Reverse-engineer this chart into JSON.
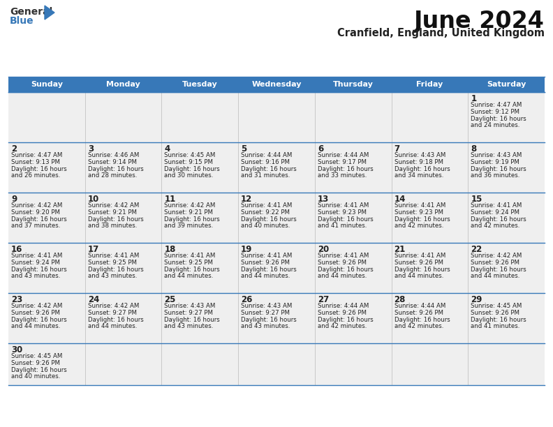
{
  "title": "June 2024",
  "subtitle": "Cranfield, England, United Kingdom",
  "days_of_week": [
    "Sunday",
    "Monday",
    "Tuesday",
    "Wednesday",
    "Thursday",
    "Friday",
    "Saturday"
  ],
  "header_color": "#3778b8",
  "header_text_color": "#ffffff",
  "cell_bg": "#efefef",
  "border_color": "#3778b8",
  "day_num_color": "#222222",
  "text_color": "#222222",
  "calendar": [
    [
      null,
      null,
      null,
      null,
      null,
      null,
      1
    ],
    [
      2,
      3,
      4,
      5,
      6,
      7,
      8
    ],
    [
      9,
      10,
      11,
      12,
      13,
      14,
      15
    ],
    [
      16,
      17,
      18,
      19,
      20,
      21,
      22
    ],
    [
      23,
      24,
      25,
      26,
      27,
      28,
      29
    ],
    [
      30,
      null,
      null,
      null,
      null,
      null,
      null
    ]
  ],
  "sunrise": {
    "1": "4:47 AM",
    "2": "4:47 AM",
    "3": "4:46 AM",
    "4": "4:45 AM",
    "5": "4:44 AM",
    "6": "4:44 AM",
    "7": "4:43 AM",
    "8": "4:43 AM",
    "9": "4:42 AM",
    "10": "4:42 AM",
    "11": "4:42 AM",
    "12": "4:41 AM",
    "13": "4:41 AM",
    "14": "4:41 AM",
    "15": "4:41 AM",
    "16": "4:41 AM",
    "17": "4:41 AM",
    "18": "4:41 AM",
    "19": "4:41 AM",
    "20": "4:41 AM",
    "21": "4:41 AM",
    "22": "4:42 AM",
    "23": "4:42 AM",
    "24": "4:42 AM",
    "25": "4:43 AM",
    "26": "4:43 AM",
    "27": "4:44 AM",
    "28": "4:44 AM",
    "29": "4:45 AM",
    "30": "4:45 AM"
  },
  "sunset": {
    "1": "9:12 PM",
    "2": "9:13 PM",
    "3": "9:14 PM",
    "4": "9:15 PM",
    "5": "9:16 PM",
    "6": "9:17 PM",
    "7": "9:18 PM",
    "8": "9:19 PM",
    "9": "9:20 PM",
    "10": "9:21 PM",
    "11": "9:21 PM",
    "12": "9:22 PM",
    "13": "9:23 PM",
    "14": "9:23 PM",
    "15": "9:24 PM",
    "16": "9:24 PM",
    "17": "9:25 PM",
    "18": "9:25 PM",
    "19": "9:26 PM",
    "20": "9:26 PM",
    "21": "9:26 PM",
    "22": "9:26 PM",
    "23": "9:26 PM",
    "24": "9:27 PM",
    "25": "9:27 PM",
    "26": "9:27 PM",
    "27": "9:26 PM",
    "28": "9:26 PM",
    "29": "9:26 PM",
    "30": "9:26 PM"
  },
  "daylight": {
    "1": [
      "16 hours",
      "and 24 minutes."
    ],
    "2": [
      "16 hours",
      "and 26 minutes."
    ],
    "3": [
      "16 hours",
      "and 28 minutes."
    ],
    "4": [
      "16 hours",
      "and 30 minutes."
    ],
    "5": [
      "16 hours",
      "and 31 minutes."
    ],
    "6": [
      "16 hours",
      "and 33 minutes."
    ],
    "7": [
      "16 hours",
      "and 34 minutes."
    ],
    "8": [
      "16 hours",
      "and 36 minutes."
    ],
    "9": [
      "16 hours",
      "and 37 minutes."
    ],
    "10": [
      "16 hours",
      "and 38 minutes."
    ],
    "11": [
      "16 hours",
      "and 39 minutes."
    ],
    "12": [
      "16 hours",
      "and 40 minutes."
    ],
    "13": [
      "16 hours",
      "and 41 minutes."
    ],
    "14": [
      "16 hours",
      "and 42 minutes."
    ],
    "15": [
      "16 hours",
      "and 42 minutes."
    ],
    "16": [
      "16 hours",
      "and 43 minutes."
    ],
    "17": [
      "16 hours",
      "and 43 minutes."
    ],
    "18": [
      "16 hours",
      "and 44 minutes."
    ],
    "19": [
      "16 hours",
      "and 44 minutes."
    ],
    "20": [
      "16 hours",
      "and 44 minutes."
    ],
    "21": [
      "16 hours",
      "and 44 minutes."
    ],
    "22": [
      "16 hours",
      "and 44 minutes."
    ],
    "23": [
      "16 hours",
      "and 44 minutes."
    ],
    "24": [
      "16 hours",
      "and 44 minutes."
    ],
    "25": [
      "16 hours",
      "and 43 minutes."
    ],
    "26": [
      "16 hours",
      "and 43 minutes."
    ],
    "27": [
      "16 hours",
      "and 42 minutes."
    ],
    "28": [
      "16 hours",
      "and 42 minutes."
    ],
    "29": [
      "16 hours",
      "and 41 minutes."
    ],
    "30": [
      "16 hours",
      "and 40 minutes."
    ]
  },
  "fig_width": 7.92,
  "fig_height": 6.12,
  "dpi": 100
}
